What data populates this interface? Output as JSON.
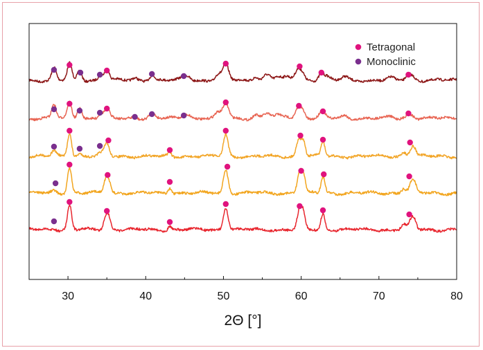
{
  "chart_data": {
    "type": "line",
    "xlabel": "2Θ [°]",
    "ylabel": "",
    "xlim": [
      25,
      80
    ],
    "x_ticks": [
      30,
      40,
      50,
      60,
      70,
      80
    ],
    "y_ticks_labeled": false,
    "grid": false,
    "legend": {
      "placement": "top-right",
      "entries": [
        {
          "label": "Tetragonal",
          "color": "#e0137e"
        },
        {
          "label": "Monoclinic",
          "color": "#7a2f8e"
        }
      ]
    },
    "series": [
      {
        "color": "#8c1616",
        "baseline": 0.82,
        "peaks": [
          [
            28.2,
            0.18,
            0.28
          ],
          [
            30.2,
            0.24,
            0.28
          ],
          [
            31.5,
            0.14,
            0.28
          ],
          [
            34.2,
            0.08,
            0.3
          ],
          [
            35.0,
            0.17,
            0.3
          ],
          [
            38.6,
            0.03,
            0.3
          ],
          [
            40.8,
            0.08,
            0.35
          ],
          [
            44.9,
            0.05,
            0.35
          ],
          [
            45.5,
            0.05,
            0.35
          ],
          [
            49.3,
            0.08,
            0.35
          ],
          [
            50.3,
            0.22,
            0.38
          ],
          [
            54.1,
            0.06,
            0.35
          ],
          [
            55.6,
            0.08,
            0.45
          ],
          [
            57.0,
            0.05,
            0.4
          ],
          [
            58.2,
            0.04,
            0.4
          ],
          [
            59.6,
            0.17,
            0.4
          ],
          [
            60.2,
            0.07,
            0.3
          ],
          [
            62.6,
            0.11,
            0.35
          ],
          [
            63.4,
            0.04,
            0.3
          ],
          [
            65.6,
            0.05,
            0.4
          ],
          [
            71.5,
            0.03,
            0.4
          ],
          [
            73.8,
            0.09,
            0.35
          ],
          [
            74.4,
            0.04,
            0.3
          ]
        ],
        "markers": [
          {
            "x": 28.2,
            "phase": "monoclinic",
            "y": 0.67
          },
          {
            "x": 30.2,
            "phase": "tetragonal",
            "y": 0.6
          },
          {
            "x": 31.6,
            "phase": "monoclinic",
            "y": 0.71
          },
          {
            "x": 34.1,
            "phase": "monoclinic",
            "y": 0.74
          },
          {
            "x": 35.0,
            "phase": "tetragonal",
            "y": 0.68
          },
          {
            "x": 40.8,
            "phase": "monoclinic",
            "y": 0.73
          },
          {
            "x": 44.9,
            "phase": "monoclinic",
            "y": 0.76
          },
          {
            "x": 50.3,
            "phase": "tetragonal",
            "y": 0.58
          },
          {
            "x": 59.8,
            "phase": "tetragonal",
            "y": 0.62
          },
          {
            "x": 62.6,
            "phase": "tetragonal",
            "y": 0.71
          },
          {
            "x": 73.8,
            "phase": "tetragonal",
            "y": 0.74
          }
        ]
      },
      {
        "color": "#e86452",
        "baseline": 1.37,
        "peaks": [
          [
            28.2,
            0.2,
            0.28
          ],
          [
            30.2,
            0.23,
            0.28
          ],
          [
            31.5,
            0.16,
            0.28
          ],
          [
            34.2,
            0.07,
            0.3
          ],
          [
            35.0,
            0.14,
            0.3
          ],
          [
            38.6,
            0.03,
            0.3
          ],
          [
            40.8,
            0.07,
            0.35
          ],
          [
            44.9,
            0.05,
            0.35
          ],
          [
            45.5,
            0.05,
            0.35
          ],
          [
            49.3,
            0.07,
            0.35
          ],
          [
            50.3,
            0.22,
            0.38
          ],
          [
            54.1,
            0.05,
            0.35
          ],
          [
            55.6,
            0.07,
            0.45
          ],
          [
            57.0,
            0.04,
            0.4
          ],
          [
            58.2,
            0.03,
            0.4
          ],
          [
            59.7,
            0.17,
            0.4
          ],
          [
            60.3,
            0.06,
            0.3
          ],
          [
            62.7,
            0.1,
            0.35
          ],
          [
            65.6,
            0.04,
            0.4
          ],
          [
            71.5,
            0.02,
            0.4
          ],
          [
            73.8,
            0.06,
            0.35
          ],
          [
            74.4,
            0.03,
            0.3
          ]
        ],
        "markers": [
          {
            "x": 28.2,
            "phase": "monoclinic",
            "y": 1.24
          },
          {
            "x": 30.2,
            "phase": "tetragonal",
            "y": 1.16
          },
          {
            "x": 31.5,
            "phase": "monoclinic",
            "y": 1.26
          },
          {
            "x": 34.1,
            "phase": "monoclinic",
            "y": 1.29
          },
          {
            "x": 35.0,
            "phase": "tetragonal",
            "y": 1.23
          },
          {
            "x": 38.6,
            "phase": "monoclinic",
            "y": 1.35
          },
          {
            "x": 40.8,
            "phase": "monoclinic",
            "y": 1.31
          },
          {
            "x": 44.9,
            "phase": "monoclinic",
            "y": 1.33
          },
          {
            "x": 50.3,
            "phase": "tetragonal",
            "y": 1.14
          },
          {
            "x": 59.7,
            "phase": "tetragonal",
            "y": 1.19
          },
          {
            "x": 62.8,
            "phase": "tetragonal",
            "y": 1.27
          },
          {
            "x": 73.8,
            "phase": "tetragonal",
            "y": 1.3
          }
        ]
      },
      {
        "color": "#f2a527",
        "baseline": 1.92,
        "peaks": [
          [
            28.2,
            0.08,
            0.3
          ],
          [
            30.2,
            0.35,
            0.26
          ],
          [
            31.5,
            0.04,
            0.3
          ],
          [
            34.2,
            0.04,
            0.3
          ],
          [
            35.0,
            0.18,
            0.3
          ],
          [
            43.1,
            0.05,
            0.22
          ],
          [
            50.3,
            0.32,
            0.3
          ],
          [
            59.7,
            0.26,
            0.3
          ],
          [
            60.3,
            0.22,
            0.25
          ],
          [
            62.8,
            0.21,
            0.25
          ],
          [
            73.2,
            0.06,
            0.3
          ],
          [
            74.2,
            0.12,
            0.3
          ],
          [
            74.6,
            0.08,
            0.25
          ]
        ],
        "markers": [
          {
            "x": 28.2,
            "phase": "monoclinic",
            "y": 1.78
          },
          {
            "x": 30.2,
            "phase": "tetragonal",
            "y": 1.55
          },
          {
            "x": 31.5,
            "phase": "monoclinic",
            "y": 1.81
          },
          {
            "x": 34.1,
            "phase": "monoclinic",
            "y": 1.77
          },
          {
            "x": 35.2,
            "phase": "tetragonal",
            "y": 1.69
          },
          {
            "x": 43.1,
            "phase": "tetragonal",
            "y": 1.83
          },
          {
            "x": 50.3,
            "phase": "tetragonal",
            "y": 1.55
          },
          {
            "x": 59.9,
            "phase": "tetragonal",
            "y": 1.62
          },
          {
            "x": 62.8,
            "phase": "tetragonal",
            "y": 1.68
          },
          {
            "x": 74.0,
            "phase": "tetragonal",
            "y": 1.72
          }
        ]
      },
      {
        "color": "#f2a51e",
        "baseline": 2.45,
        "peaks": [
          [
            28.2,
            0.03,
            0.3
          ],
          [
            30.2,
            0.38,
            0.26
          ],
          [
            34.9,
            0.2,
            0.3
          ],
          [
            35.3,
            0.12,
            0.25
          ],
          [
            43.1,
            0.08,
            0.22
          ],
          [
            50.3,
            0.34,
            0.3
          ],
          [
            59.8,
            0.3,
            0.3
          ],
          [
            60.3,
            0.22,
            0.25
          ],
          [
            62.8,
            0.24,
            0.25
          ],
          [
            73.2,
            0.07,
            0.3
          ],
          [
            74.2,
            0.14,
            0.3
          ],
          [
            74.6,
            0.1,
            0.25
          ]
        ],
        "markers": [
          {
            "x": 28.4,
            "phase": "monoclinic",
            "y": 2.31
          },
          {
            "x": 30.2,
            "phase": "tetragonal",
            "y": 2.04
          },
          {
            "x": 35.1,
            "phase": "tetragonal",
            "y": 2.19
          },
          {
            "x": 43.1,
            "phase": "tetragonal",
            "y": 2.29
          },
          {
            "x": 50.5,
            "phase": "tetragonal",
            "y": 2.07
          },
          {
            "x": 60.0,
            "phase": "tetragonal",
            "y": 2.13
          },
          {
            "x": 62.9,
            "phase": "tetragonal",
            "y": 2.18
          },
          {
            "x": 73.9,
            "phase": "tetragonal",
            "y": 2.21
          }
        ]
      },
      {
        "color": "#e8262e",
        "baseline": 2.98,
        "peaks": [
          [
            28.2,
            0.02,
            0.3
          ],
          [
            30.2,
            0.36,
            0.26
          ],
          [
            34.9,
            0.2,
            0.3
          ],
          [
            35.3,
            0.12,
            0.25
          ],
          [
            43.1,
            0.06,
            0.22
          ],
          [
            50.3,
            0.32,
            0.3
          ],
          [
            59.8,
            0.28,
            0.3
          ],
          [
            60.3,
            0.2,
            0.25
          ],
          [
            62.8,
            0.23,
            0.25
          ],
          [
            73.2,
            0.07,
            0.3
          ],
          [
            74.2,
            0.14,
            0.3
          ],
          [
            74.6,
            0.1,
            0.25
          ]
        ],
        "markers": [
          {
            "x": 28.2,
            "phase": "monoclinic",
            "y": 2.86
          },
          {
            "x": 30.2,
            "phase": "tetragonal",
            "y": 2.58
          },
          {
            "x": 35.0,
            "phase": "tetragonal",
            "y": 2.71
          },
          {
            "x": 43.1,
            "phase": "tetragonal",
            "y": 2.87
          },
          {
            "x": 50.3,
            "phase": "tetragonal",
            "y": 2.61
          },
          {
            "x": 59.8,
            "phase": "tetragonal",
            "y": 2.64
          },
          {
            "x": 62.8,
            "phase": "tetragonal",
            "y": 2.7
          },
          {
            "x": 73.9,
            "phase": "tetragonal",
            "y": 2.76
          }
        ]
      }
    ]
  }
}
